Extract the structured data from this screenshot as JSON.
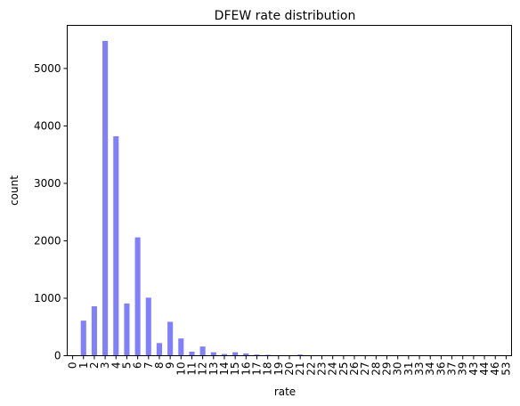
{
  "chart_data": {
    "type": "bar",
    "title": "DFEW rate distribution",
    "xlabel": "rate",
    "ylabel": "count",
    "ylim": [
      0,
      5750
    ],
    "yticks": [
      0,
      1000,
      2000,
      3000,
      4000,
      5000
    ],
    "grid": false,
    "legend": "none",
    "bar_color": "#8080ff",
    "categories": [
      "0",
      "1",
      "2",
      "3",
      "4",
      "5",
      "6",
      "7",
      "8",
      "9",
      "10",
      "11",
      "12",
      "13",
      "14",
      "15",
      "16",
      "17",
      "18",
      "19",
      "20",
      "21",
      "22",
      "23",
      "24",
      "25",
      "26",
      "27",
      "28",
      "29",
      "30",
      "31",
      "33",
      "34",
      "36",
      "37",
      "39",
      "43",
      "44",
      "46",
      "53"
    ],
    "values": [
      10,
      610,
      860,
      5480,
      3820,
      910,
      2060,
      1010,
      220,
      590,
      300,
      70,
      160,
      60,
      30,
      60,
      40,
      20,
      15,
      10,
      8,
      20,
      6,
      5,
      4,
      4,
      3,
      3,
      3,
      2,
      2,
      2,
      2,
      1,
      1,
      1,
      1,
      1,
      1,
      1,
      1
    ]
  }
}
